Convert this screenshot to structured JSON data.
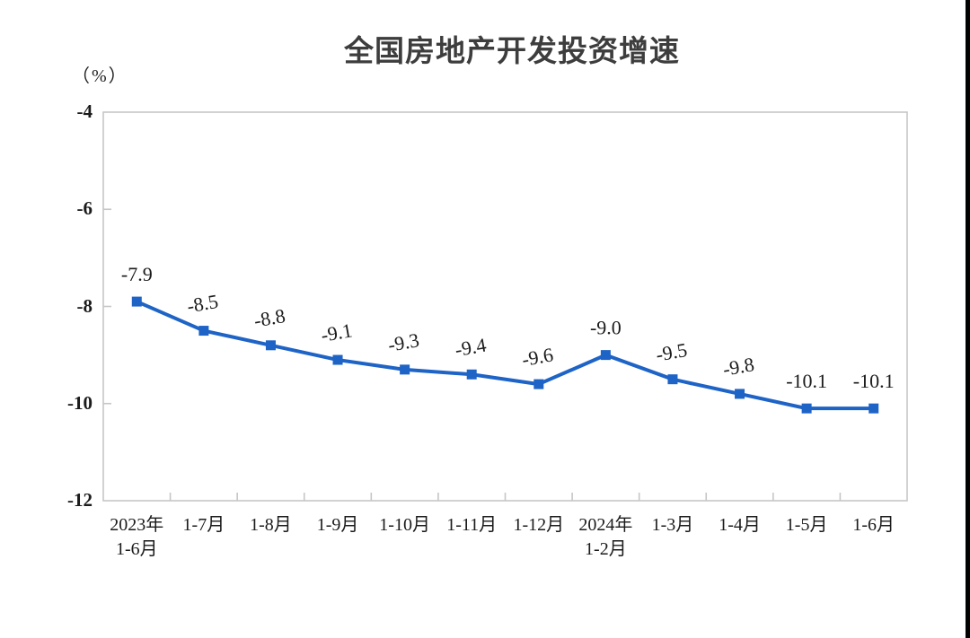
{
  "page": {
    "background": "#ffffff",
    "right_edge_bar_color": "#010101"
  },
  "chart": {
    "title": "全国房地产开发投资增速",
    "unit_label": "（%）",
    "line_color": "#1E63C6",
    "marker_color": "#1E63C6",
    "text_color": "#1b1b1b",
    "axis_color": "#c6c6c6"
  },
  "chart_data": {
    "type": "line",
    "title": "全国房地产开发投资增速",
    "ylabel": "（%）",
    "categories": [
      "2023年\n1-6月",
      "1-7月",
      "1-8月",
      "1-9月",
      "1-10月",
      "1-11月",
      "1-12月",
      "2024年\n1-2月",
      "1-3月",
      "1-4月",
      "1-5月",
      "1-6月"
    ],
    "values": [
      -7.9,
      -8.5,
      -8.8,
      -9.1,
      -9.3,
      -9.4,
      -9.6,
      -9.0,
      -9.5,
      -9.8,
      -10.1,
      -10.1
    ],
    "data_labels": [
      "-7.9",
      "-8.5",
      "-8.8",
      "-9.1",
      "-9.3",
      "-9.4",
      "-9.6",
      "-9.0",
      "-9.5",
      "-9.8",
      "-10.1",
      "-10.1"
    ],
    "ylim": [
      -12,
      -4
    ],
    "yticks": [
      -4,
      -6,
      -8,
      -10,
      -12
    ],
    "grid": false,
    "legend": null,
    "marker": "square",
    "label_tilt_deg": [
      0,
      -10,
      -10,
      -10,
      -10,
      -10,
      -10,
      0,
      -10,
      -10,
      0,
      0
    ]
  }
}
